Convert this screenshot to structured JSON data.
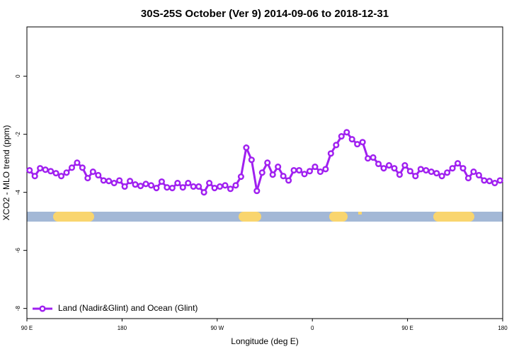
{
  "chart_data": {
    "type": "line",
    "title": "30S-25S October (Ver 9)   2014-09-06 to 2018-12-31",
    "x_label": "Longitude (deg E)",
    "y_label": "XCO2 - MLO trend (ppm)",
    "xlim": [
      90,
      540
    ],
    "xticks": [
      {
        "value": 90,
        "label": "90 E"
      },
      {
        "value": 180,
        "label": "180"
      },
      {
        "value": 270,
        "label": "90 W"
      },
      {
        "value": 360,
        "label": "0"
      },
      {
        "value": 450,
        "label": "90 E"
      },
      {
        "value": 540,
        "label": "180"
      }
    ],
    "ylim": [
      -8.35,
      1.7
    ],
    "yticks": [
      0,
      -2,
      -4,
      -6,
      -8
    ],
    "x": [
      92.5,
      97.5,
      102.5,
      107.5,
      112.5,
      117.5,
      122.5,
      127.5,
      132.5,
      137.5,
      142.5,
      147.5,
      152.5,
      157.5,
      162.5,
      167.5,
      172.5,
      177.5,
      182.5,
      187.5,
      192.5,
      197.5,
      202.5,
      207.5,
      212.5,
      217.5,
      222.5,
      227.5,
      232.5,
      237.5,
      242.5,
      247.5,
      252.5,
      257.5,
      262.5,
      267.5,
      272.5,
      277.5,
      282.5,
      287.5,
      292.5,
      297.5,
      302.5,
      307.5,
      312.5,
      317.5,
      322.5,
      327.5,
      332.5,
      337.5,
      342.5,
      347.5,
      352.5,
      357.5,
      362.5,
      367.5,
      372.5,
      377.5,
      382.5,
      387.5,
      392.5,
      397.5,
      402.5,
      407.5,
      412.5,
      417.5,
      422.5,
      427.5,
      432.5,
      437.5,
      442.5,
      447.5,
      452.5,
      457.5,
      462.5,
      467.5,
      472.5,
      477.5,
      482.5,
      487.5,
      492.5,
      497.5,
      502.5,
      507.5,
      512.5,
      517.5,
      522.5,
      527.5,
      532.5,
      537.5
    ],
    "series": [
      {
        "name": "Land (Nadir&Glint) and Ocean (Glint)",
        "color": "#a020f0",
        "values": [
          -3.24,
          -3.44,
          -3.17,
          -3.22,
          -3.27,
          -3.34,
          -3.44,
          -3.32,
          -3.15,
          -2.98,
          -3.15,
          -3.51,
          -3.29,
          -3.41,
          -3.59,
          -3.61,
          -3.68,
          -3.59,
          -3.8,
          -3.61,
          -3.73,
          -3.78,
          -3.71,
          -3.76,
          -3.85,
          -3.63,
          -3.83,
          -3.85,
          -3.68,
          -3.83,
          -3.68,
          -3.8,
          -3.8,
          -4.0,
          -3.68,
          -3.85,
          -3.8,
          -3.76,
          -3.88,
          -3.76,
          -3.46,
          -2.46,
          -2.88,
          -3.95,
          -3.32,
          -2.98,
          -3.39,
          -3.12,
          -3.44,
          -3.59,
          -3.24,
          -3.24,
          -3.37,
          -3.27,
          -3.12,
          -3.29,
          -3.2,
          -2.66,
          -2.37,
          -2.07,
          -1.93,
          -2.17,
          -2.34,
          -2.27,
          -2.83,
          -2.8,
          -3.02,
          -3.17,
          -3.07,
          -3.17,
          -3.39,
          -3.07,
          -3.27,
          -3.44,
          -3.2,
          -3.24,
          -3.29,
          -3.34,
          -3.44,
          -3.32,
          -3.17,
          -3.0,
          -3.17,
          -3.51,
          -3.29,
          -3.41,
          -3.59,
          -3.61,
          -3.68,
          -3.59
        ]
      }
    ],
    "legend": "bottom-left"
  }
}
